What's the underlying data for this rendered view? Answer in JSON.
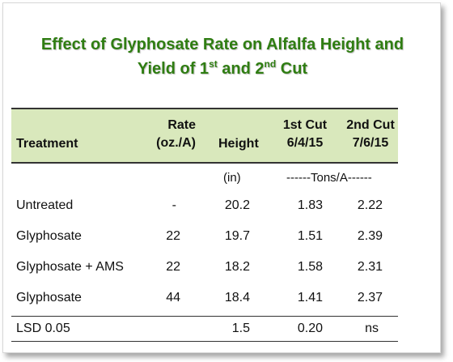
{
  "title": {
    "line1": "Effect of Glyphosate Rate on Alfalfa Height and",
    "line2_pre": "Yield of 1",
    "line2_sup1": "st",
    "line2_mid": " and 2",
    "line2_sup2": "nd",
    "line2_post": " Cut"
  },
  "table": {
    "headers": {
      "treatment": "Treatment",
      "rate_line1": "Rate",
      "rate_line2": "(oz./A)",
      "height": "Height",
      "cut1_line1": "1st Cut",
      "cut1_line2": "6/4/15",
      "cut2_line1": "2nd Cut",
      "cut2_line2": "7/6/15"
    },
    "units": {
      "height": "(in)",
      "yield": "------Tons/A------"
    },
    "rows": [
      {
        "treatment": "Untreated",
        "rate": "-",
        "height": "20.2",
        "cut1": "1.83",
        "cut2": "2.22"
      },
      {
        "treatment": "Glyphosate",
        "rate": "22",
        "height": "19.7",
        "cut1": "1.51",
        "cut2": "2.39"
      },
      {
        "treatment": "Glyphosate + AMS",
        "rate": "22",
        "height": "18.2",
        "cut1": "1.58",
        "cut2": "2.31"
      },
      {
        "treatment": "Glyphosate",
        "rate": "44",
        "height": "18.4",
        "cut1": "1.41",
        "cut2": "2.37"
      }
    ],
    "lsd": {
      "treatment": "LSD 0.05",
      "rate": "",
      "height": "1.5",
      "cut1": "0.20",
      "cut2": "ns"
    }
  },
  "colors": {
    "title": "#2f7d12",
    "header_bg": "#d9e8bc"
  }
}
